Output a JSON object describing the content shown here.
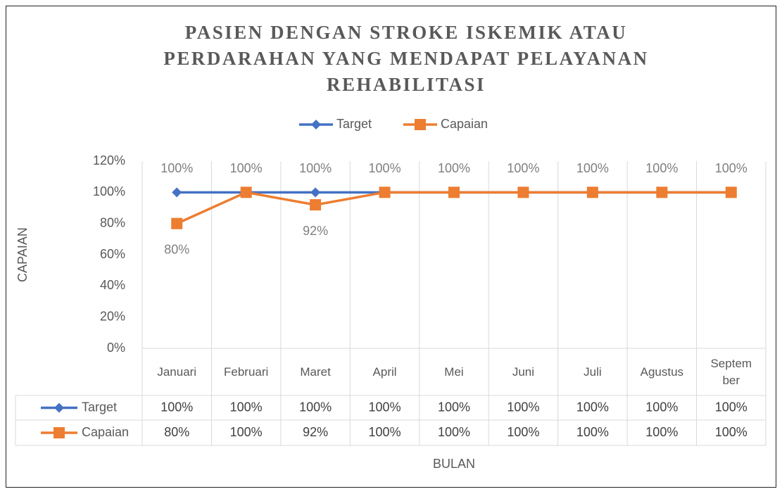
{
  "chart_data": {
    "type": "line",
    "title": "PASIEN DENGAN STROKE ISKEMIK ATAU PERDARAHAN YANG MENDAPAT PELAYANAN REHABILITASI",
    "x_label": "BULAN",
    "y_label": "CAPAIAN",
    "categories": [
      "Januari",
      "Februari",
      "Maret",
      "April",
      "Mei",
      "Juni",
      "Juli",
      "Agustus",
      "September"
    ],
    "series": [
      {
        "name": "Target",
        "color": "#4472c4",
        "marker": "diamond",
        "values": [
          100,
          100,
          100,
          100,
          100,
          100,
          100,
          100,
          100
        ],
        "value_labels": [
          "100%",
          "100%",
          "100%",
          "100%",
          "100%",
          "100%",
          "100%",
          "100%",
          "100%"
        ]
      },
      {
        "name": "Capaian",
        "color": "#ed7d31",
        "marker": "square",
        "values": [
          80,
          100,
          92,
          100,
          100,
          100,
          100,
          100,
          100
        ],
        "value_labels": [
          "80%",
          "100%",
          "92%",
          "100%",
          "100%",
          "100%",
          "100%",
          "100%",
          "100%"
        ]
      }
    ],
    "ylim": [
      0,
      120
    ],
    "yticks": [
      {
        "value": 0,
        "label": "0%"
      },
      {
        "value": 20,
        "label": "20%"
      },
      {
        "value": 40,
        "label": "40%"
      },
      {
        "value": 60,
        "label": "60%"
      },
      {
        "value": 80,
        "label": "80%"
      },
      {
        "value": 100,
        "label": "100%"
      },
      {
        "value": 120,
        "label": "120%"
      }
    ],
    "legend": "top",
    "data_table": true
  }
}
